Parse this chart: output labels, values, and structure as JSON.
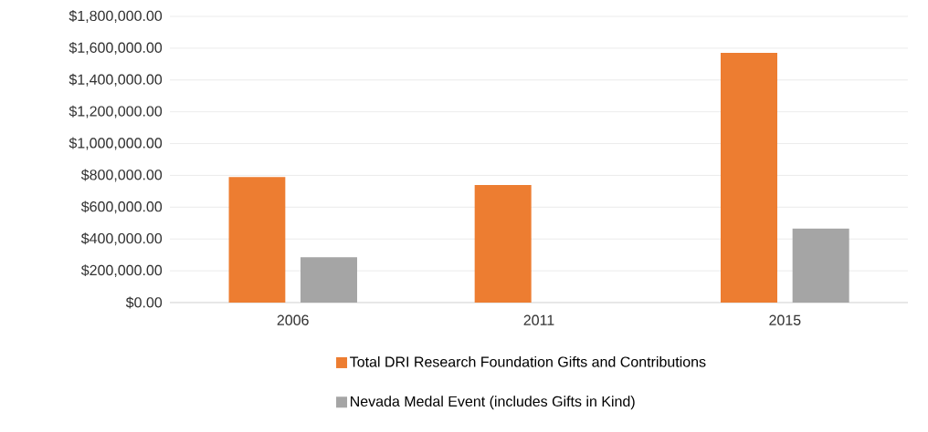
{
  "chart_data": {
    "type": "bar",
    "categories": [
      "2006",
      "2011",
      "2015"
    ],
    "series": [
      {
        "name": "Total DRI Research Foundation Gifts and Contributions",
        "color": "#ed7d31",
        "values": [
          790000,
          740000,
          1570000
        ]
      },
      {
        "name": "Nevada Medal Event (includes Gifts in Kind)",
        "color": "#a5a5a5",
        "values": [
          285000,
          null,
          465000
        ]
      }
    ],
    "ylim": [
      0,
      1800000
    ],
    "yticks": [
      {
        "value": 0,
        "label": "$0.00"
      },
      {
        "value": 200000,
        "label": "$200,000.00"
      },
      {
        "value": 400000,
        "label": "$400,000.00"
      },
      {
        "value": 600000,
        "label": "$600,000.00"
      },
      {
        "value": 800000,
        "label": "$800,000.00"
      },
      {
        "value": 1000000,
        "label": "$1,000,000.00"
      },
      {
        "value": 1200000,
        "label": "$1,200,000.00"
      },
      {
        "value": 1400000,
        "label": "$1,400,000.00"
      },
      {
        "value": 1600000,
        "label": "$1,600,000.00"
      },
      {
        "value": 1800000,
        "label": "$1,800,000.00"
      }
    ],
    "grid": "y",
    "legend": "bottom"
  }
}
